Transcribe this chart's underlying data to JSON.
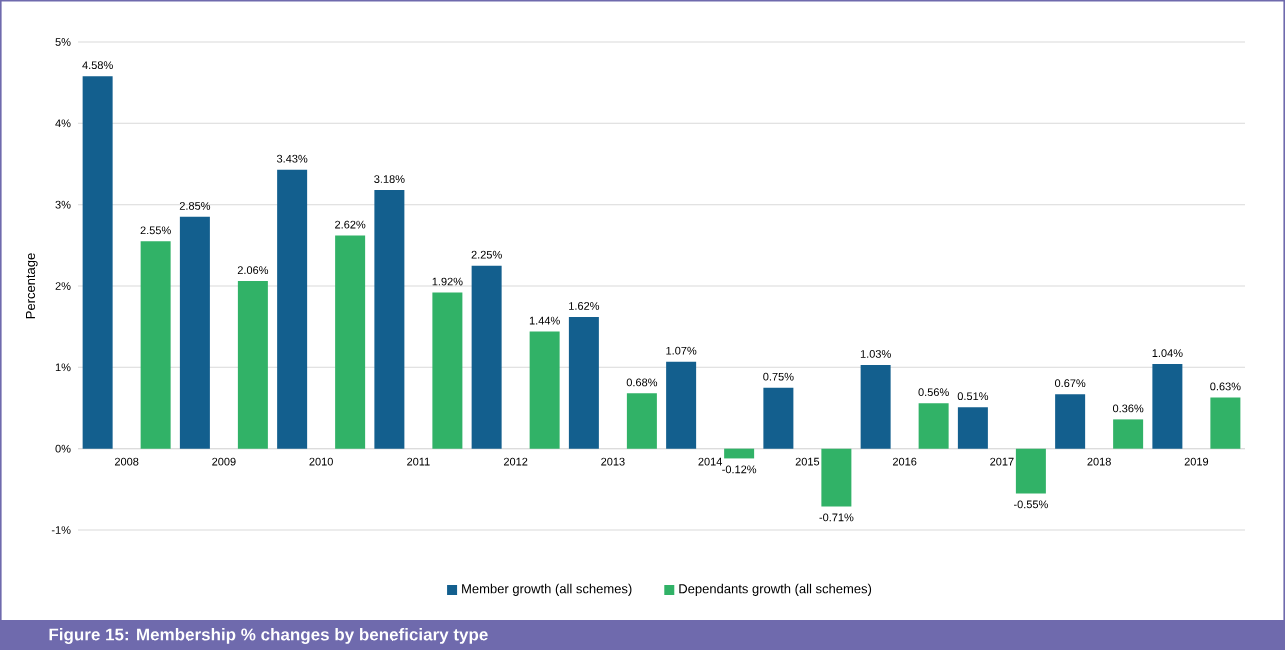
{
  "chart_data": {
    "type": "bar",
    "title": "Figure 15: Membership % changes by beneficiary type",
    "ylabel": "Percentage",
    "categories": [
      "2008",
      "2009",
      "2010",
      "2011",
      "2012",
      "2013",
      "2014",
      "2015",
      "2016",
      "2017",
      "2018",
      "2019"
    ],
    "series": [
      {
        "name": "Member growth (all schemes)",
        "color": "#135f8e",
        "values": [
          4.58,
          2.85,
          3.43,
          3.18,
          2.25,
          1.62,
          1.07,
          0.75,
          1.03,
          0.51,
          0.67,
          1.04
        ],
        "value_labels": [
          "4.58%",
          "2.85%",
          "3.43%",
          "3.18%",
          "2.25%",
          "1.62%",
          "1.07%",
          "0.75%",
          "1.03%",
          "0.51%",
          "0.67%",
          "1.04%"
        ]
      },
      {
        "name": "Dependants growth (all schemes)",
        "color": "#31b267",
        "values": [
          2.55,
          2.06,
          2.62,
          1.92,
          1.44,
          0.68,
          -0.12,
          -0.71,
          0.56,
          -0.55,
          0.36,
          0.63
        ],
        "value_labels": [
          "2.55%",
          "2.06%",
          "2.62%",
          "1.92%",
          "1.44%",
          "0.68%",
          "-0.12%",
          "-0.71%",
          "0.56%",
          "-0.55%",
          "0.36%",
          "0.63%"
        ]
      }
    ],
    "ylim": [
      -1,
      5
    ],
    "yticks": [
      {
        "value": -1,
        "label": "-1%"
      },
      {
        "value": 0,
        "label": "0%"
      },
      {
        "value": 1,
        "label": "1%"
      },
      {
        "value": 2,
        "label": "2%"
      },
      {
        "value": 3,
        "label": "3%"
      },
      {
        "value": 4,
        "label": "4%"
      },
      {
        "value": 5,
        "label": "5%"
      }
    ],
    "grid": "y",
    "legend": "bottom"
  }
}
